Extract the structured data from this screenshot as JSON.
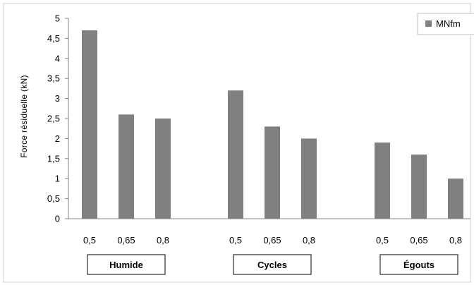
{
  "chart_data": {
    "type": "bar",
    "title": "",
    "ylabel": "Force résiduelle (kN)",
    "xlabel": "",
    "ylim": [
      0,
      5
    ],
    "yticks": [
      0,
      0.5,
      1,
      1.5,
      2,
      2.5,
      3,
      3.5,
      4,
      4.5,
      5
    ],
    "ytick_labels": [
      "0",
      "0,5",
      "1",
      "1,5",
      "2",
      "2,5",
      "3",
      "3,5",
      "4",
      "4,5",
      "5"
    ],
    "grid": false,
    "legend_position": "top-right",
    "series": [
      {
        "name": "MNfm",
        "color": "#808080"
      }
    ],
    "groups": [
      {
        "label": "Humide",
        "categories": [
          "0,5",
          "0,65",
          "0,8"
        ],
        "values": [
          4.7,
          2.6,
          2.5
        ]
      },
      {
        "label": "Cycles",
        "categories": [
          "0,5",
          "0,65",
          "0,8"
        ],
        "values": [
          3.2,
          2.3,
          2.0
        ]
      },
      {
        "label": "Égouts",
        "categories": [
          "0,5",
          "0,65",
          "0,8"
        ],
        "values": [
          1.9,
          1.6,
          1.0
        ]
      }
    ]
  }
}
